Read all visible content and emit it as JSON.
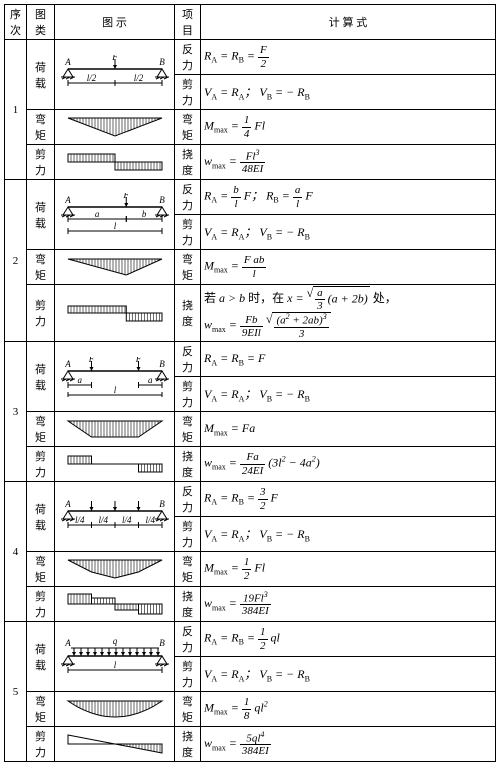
{
  "headers": {
    "seq": "序次",
    "type": "图类",
    "diagram": "图 示",
    "item": "项目",
    "formula": "计 算 式"
  },
  "labels": {
    "load": "荷载",
    "moment": "弯矩",
    "shear": "剪力",
    "reaction": "反力",
    "deflection": "挠度"
  },
  "rows": [
    {
      "seq": "1",
      "reaction": "R<sub>A</sub> = R<sub>B</sub> = <span class='frac'><span class='n'>F</span><span class='d'>2</span></span>",
      "shear": "V<sub>A</sub> = R<sub>A</sub>； V<sub>B</sub> = − R<sub>B</sub>",
      "moment": "M<sub>max</sub> = <span class='frac'><span class='n'>1</span><span class='d'>4</span></span> Fl",
      "deflection": "w<sub>max</sub> = <span class='frac'><span class='n'>Fl<sup>3</sup></span><span class='d'>48EI</span></span>"
    },
    {
      "seq": "2",
      "reaction": "R<sub>A</sub> = <span class='frac'><span class='n'>b</span><span class='d'>l</span></span> F； R<sub>B</sub> = <span class='frac'><span class='n'>a</span><span class='d'>l</span></span> F",
      "shear": "V<sub>A</sub> = R<sub>A</sub>； V<sub>B</sub> = − R<sub>B</sub>",
      "moment": "M<sub>max</sub> = <span class='frac'><span class='n'>F ab</span><span class='d'>l</span></span>",
      "deflection": "<span class='up'>若</span> a &gt; b <span class='up'>时，在</span> x = <span class='sqrt'><span class='rad'><span class='frac'><span class='n'>a</span><span class='d'>3</span></span> (a + 2b)</span></span> <span class='up'>处，</span><br>w<sub>max</sub> = <span class='frac'><span class='n'>Fb</span><span class='d'>9EIl</span></span> <span class='sqrt'><span class='rad'><span class='frac'><span class='n'>(a<sup>2</sup> + 2ab)<sup>3</sup></span><span class='d'>3</span></span></span></span>"
    },
    {
      "seq": "3",
      "reaction": "R<sub>A</sub> = R<sub>B</sub> = F",
      "shear": "V<sub>A</sub> = R<sub>A</sub>； V<sub>B</sub> = − R<sub>B</sub>",
      "moment": "M<sub>max</sub> = Fa",
      "deflection": "w<sub>max</sub> = <span class='frac'><span class='n'>Fa</span><span class='d'>24EI</span></span> (3l<sup>2</sup> − 4a<sup>2</sup>)"
    },
    {
      "seq": "4",
      "reaction": "R<sub>A</sub> = R<sub>B</sub> = <span class='frac'><span class='n'>3</span><span class='d'>2</span></span> F",
      "shear": "V<sub>A</sub> = R<sub>A</sub>； V<sub>B</sub> = − R<sub>B</sub>",
      "moment": "M<sub>max</sub> = <span class='frac'><span class='n'>1</span><span class='d'>2</span></span> Fl",
      "deflection": "w<sub>max</sub> = <span class='frac'><span class='n'>19Fl<sup>3</sup></span><span class='d'>384EI</span></span>"
    },
    {
      "seq": "5",
      "reaction": "R<sub>A</sub> = R<sub>B</sub> = <span class='frac'><span class='n'>1</span><span class='d'>2</span></span> ql",
      "shear": "V<sub>A</sub> = R<sub>A</sub>； V<sub>B</sub> = − R<sub>B</sub>",
      "moment": "M<sub>max</sub> = <span class='frac'><span class='n'>1</span><span class='d'>8</span></span> ql<sup>2</sup>",
      "deflection": "w<sub>max</sub> = <span class='frac'><span class='n'>5ql<sup>4</sup></span><span class='d'>384EI</span></span>"
    }
  ],
  "svg": {
    "stroke": "#000",
    "fill": "#000",
    "hatchGap": 4,
    "beamY": 16,
    "width": 110,
    "height": 34
  }
}
